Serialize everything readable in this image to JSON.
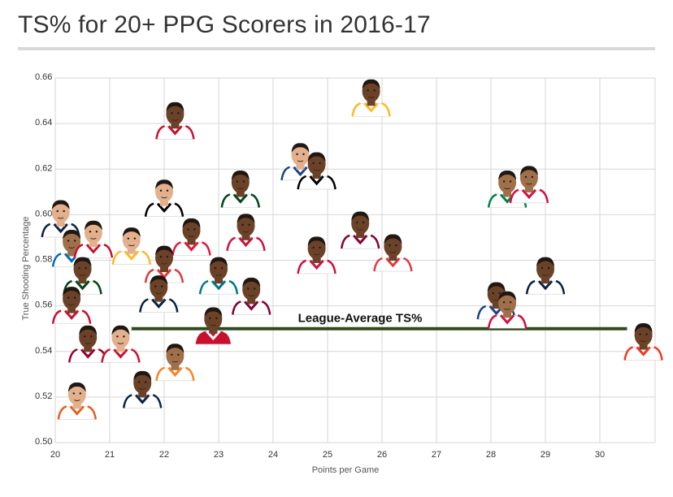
{
  "title": "TS% for 20+ PPG Scorers in 2016-17",
  "colors": {
    "grid": "#d6d6d6",
    "reference_line": "#2f4a1f",
    "skin_dark": "#6b4228",
    "skin_medium": "#a0704a",
    "skin_light": "#e3b08e",
    "hair": "#1f1711"
  },
  "chart_data": {
    "type": "scatter",
    "title": "TS% for 20+ PPG Scorers in 2016-17",
    "xlabel": "Points per Game",
    "ylabel": "True Shooting Percentage",
    "xlim": [
      20,
      31
    ],
    "ylim": [
      0.5,
      0.66
    ],
    "xticks": [
      20,
      21,
      22,
      23,
      24,
      25,
      26,
      27,
      28,
      29,
      30
    ],
    "xtick_labels": [
      "20",
      "21",
      "22",
      "23",
      "24",
      "25",
      "26",
      "27",
      "28",
      "29",
      "30"
    ],
    "yticks": [
      0.5,
      0.52,
      0.54,
      0.56,
      0.58,
      0.6,
      0.62,
      0.64,
      0.66
    ],
    "ytick_labels": [
      "0.50",
      "0.52",
      "0.54",
      "0.56",
      "0.58",
      "0.60",
      "0.62",
      "0.64",
      "0.66"
    ],
    "grid": true,
    "marker": "player-headshot",
    "reference_line": {
      "label": "League-Average TS%",
      "y": 0.55,
      "x_range": [
        21.4,
        30.5
      ]
    },
    "points": [
      {
        "x": 22.2,
        "y": 0.641,
        "jersey": "#ffffff",
        "trim": "#c8102e",
        "skin": "dark"
      },
      {
        "x": 25.8,
        "y": 0.651,
        "jersey": "#ffffff",
        "trim": "#fdb927",
        "skin": "dark"
      },
      {
        "x": 24.5,
        "y": 0.623,
        "jersey": "#ffffff",
        "trim": "#1d428a",
        "skin": "light"
      },
      {
        "x": 24.8,
        "y": 0.619,
        "jersey": "#ffffff",
        "trim": "#000000",
        "skin": "dark"
      },
      {
        "x": 28.3,
        "y": 0.611,
        "jersey": "#ffffff",
        "trim": "#008348",
        "skin": "medium"
      },
      {
        "x": 28.7,
        "y": 0.613,
        "jersey": "#ffffff",
        "trim": "#ce1141",
        "skin": "medium"
      },
      {
        "x": 23.4,
        "y": 0.611,
        "jersey": "#ffffff",
        "trim": "#00471b",
        "skin": "dark"
      },
      {
        "x": 22.0,
        "y": 0.607,
        "jersey": "#ffffff",
        "trim": "#000000",
        "skin": "light"
      },
      {
        "x": 20.1,
        "y": 0.598,
        "jersey": "#ffffff",
        "trim": "#0c2340",
        "skin": "light"
      },
      {
        "x": 20.3,
        "y": 0.585,
        "jersey": "#ffffff",
        "trim": "#006bb6",
        "skin": "medium"
      },
      {
        "x": 20.7,
        "y": 0.589,
        "jersey": "#ffffff",
        "trim": "#c8102e",
        "skin": "light"
      },
      {
        "x": 21.4,
        "y": 0.586,
        "jersey": "#ffffff",
        "trim": "#fdb927",
        "skin": "light"
      },
      {
        "x": 22.5,
        "y": 0.59,
        "jersey": "#ffffff",
        "trim": "#e31837",
        "skin": "dark"
      },
      {
        "x": 23.5,
        "y": 0.592,
        "jersey": "#ffffff",
        "trim": "#ce1141",
        "skin": "dark"
      },
      {
        "x": 22.0,
        "y": 0.578,
        "jersey": "#ffffff",
        "trim": "#e03a3e",
        "skin": "dark"
      },
      {
        "x": 23.0,
        "y": 0.573,
        "jersey": "#ffffff",
        "trim": "#00788c",
        "skin": "dark"
      },
      {
        "x": 24.8,
        "y": 0.582,
        "jersey": "#ffffff",
        "trim": "#ce1141",
        "skin": "dark"
      },
      {
        "x": 25.6,
        "y": 0.593,
        "jersey": "#ffffff",
        "trim": "#860038",
        "skin": "dark"
      },
      {
        "x": 26.2,
        "y": 0.583,
        "jersey": "#ffffff",
        "trim": "#e03a3e",
        "skin": "dark"
      },
      {
        "x": 20.5,
        "y": 0.573,
        "jersey": "#ffffff",
        "trim": "#00471b",
        "skin": "dark"
      },
      {
        "x": 21.9,
        "y": 0.565,
        "jersey": "#ffffff",
        "trim": "#0c2340",
        "skin": "dark"
      },
      {
        "x": 23.6,
        "y": 0.564,
        "jersey": "#ffffff",
        "trim": "#860038",
        "skin": "dark"
      },
      {
        "x": 20.3,
        "y": 0.56,
        "jersey": "#ffffff",
        "trim": "#c8102e",
        "skin": "dark"
      },
      {
        "x": 28.1,
        "y": 0.562,
        "jersey": "#ffffff",
        "trim": "#1d428a",
        "skin": "dark"
      },
      {
        "x": 28.3,
        "y": 0.558,
        "jersey": "#ffffff",
        "trim": "#ce1141",
        "skin": "medium"
      },
      {
        "x": 29.0,
        "y": 0.573,
        "jersey": "#ffffff",
        "trim": "#0c2340",
        "skin": "dark"
      },
      {
        "x": 20.6,
        "y": 0.543,
        "jersey": "#ffffff",
        "trim": "#98002e",
        "skin": "dark"
      },
      {
        "x": 21.2,
        "y": 0.543,
        "jersey": "#ffffff",
        "trim": "#c8102e",
        "skin": "light"
      },
      {
        "x": 22.9,
        "y": 0.551,
        "jersey": "#c8102e",
        "trim": "#ffffff",
        "skin": "dark"
      },
      {
        "x": 22.2,
        "y": 0.535,
        "jersey": "#ffffff",
        "trim": "#f58426",
        "skin": "medium"
      },
      {
        "x": 21.6,
        "y": 0.523,
        "jersey": "#ffffff",
        "trim": "#0c2340",
        "skin": "dark"
      },
      {
        "x": 20.4,
        "y": 0.518,
        "jersey": "#ffffff",
        "trim": "#e56020",
        "skin": "light"
      },
      {
        "x": 30.8,
        "y": 0.544,
        "jersey": "#ffffff",
        "trim": "#ef3b24",
        "skin": "dark"
      }
    ]
  }
}
